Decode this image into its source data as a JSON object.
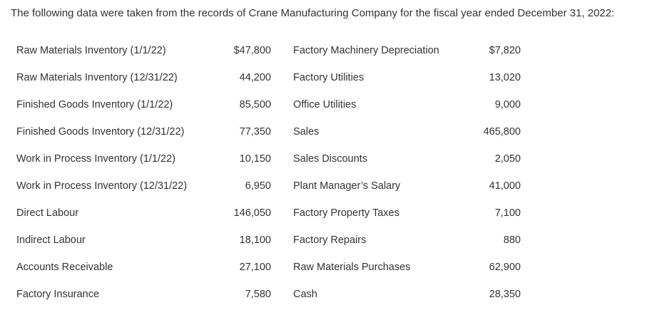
{
  "intro": "The following data were taken from the records of Crane Manufacturing Company for the fiscal year ended December 31, 2022:",
  "table": {
    "rows": [
      [
        "Raw Materials Inventory (1/1/22)",
        "$47,800",
        "Factory Machinery Depreciation",
        "$7,820"
      ],
      [
        "Raw Materials Inventory (12/31/22)",
        "44,200",
        "Factory Utilities",
        "13,020"
      ],
      [
        "Finished Goods Inventory (1/1/22)",
        "85,500",
        "Office Utilities",
        "9,000"
      ],
      [
        "Finished Goods Inventory (12/31/22)",
        "77,350",
        "Sales",
        "465,800"
      ],
      [
        "Work in Process Inventory (1/1/22)",
        "10,150",
        "Sales Discounts",
        "2,050"
      ],
      [
        "Work in Process Inventory (12/31/22)",
        "6,950",
        "Plant Manager’s Salary",
        "41,000"
      ],
      [
        "Direct Labour",
        "146,050",
        "Factory Property Taxes",
        "7,100"
      ],
      [
        "Indirect Labour",
        "18,100",
        "Factory Repairs",
        "880"
      ],
      [
        "Accounts Receivable",
        "27,100",
        "Raw Materials Purchases",
        "62,900"
      ],
      [
        "Factory Insurance",
        "7,580",
        "Cash",
        "28,350"
      ]
    ]
  }
}
